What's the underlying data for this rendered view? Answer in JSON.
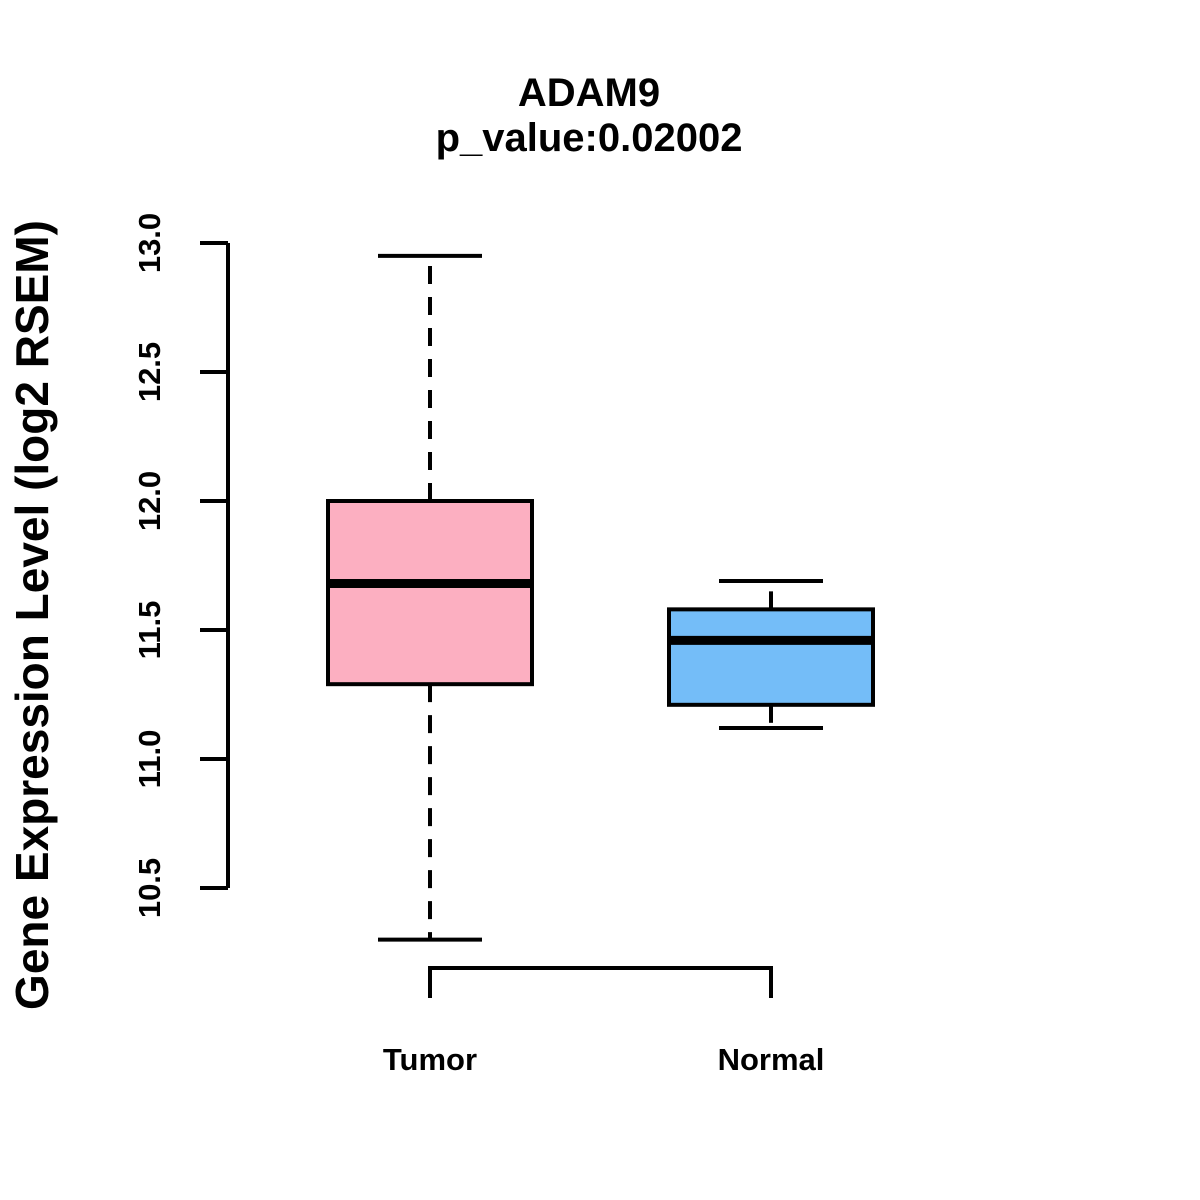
{
  "figure": {
    "title": "ADAM9",
    "subtitle": "p_value:0.02002"
  },
  "chart_data": {
    "type": "boxplot",
    "title": "ADAM9",
    "subtitle": "p_value:0.02002",
    "ylabel": "Gene Expression Level (log2 RSEM)",
    "xlabel": "",
    "ylim": [
      10.5,
      13.0
    ],
    "yticks": [
      10.5,
      11.0,
      11.5,
      12.0,
      12.5,
      13.0
    ],
    "ytick_labels": [
      "10.5",
      "11.0",
      "11.5",
      "12.0",
      "12.5",
      "13.0"
    ],
    "categories": [
      "Tumor",
      "Normal"
    ],
    "series": [
      {
        "name": "Tumor",
        "whisker_low": 10.3,
        "q1": 11.29,
        "median": 11.68,
        "q3": 12.0,
        "whisker_high": 12.95,
        "color": "#FCAFC1"
      },
      {
        "name": "Normal",
        "whisker_low": 11.12,
        "q1": 11.21,
        "median": 11.46,
        "q3": 11.58,
        "whisker_high": 11.69,
        "color": "#74BDF8"
      }
    ],
    "grid": false,
    "legend": "none",
    "whisker_line_style": "dashed",
    "box_border_color": "#000000",
    "background_color": "#FFFFFF"
  }
}
